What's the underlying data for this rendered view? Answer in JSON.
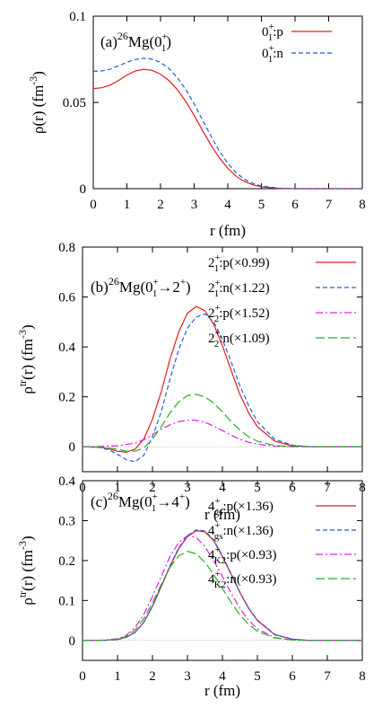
{
  "chart_data": [
    {
      "type": "line",
      "title_parts": {
        "prefix": "(a)",
        "mass": "26",
        "element": "Mg(0",
        "sup": "+",
        "sub": "1",
        "close": ")"
      },
      "xlabel": "r (fm)",
      "ylabel_main": "ρ(r) (fm",
      "ylabel_sup": "-3",
      "ylabel_close": ")",
      "xlim": [
        0,
        8
      ],
      "ylim": [
        0,
        0.1
      ],
      "xticks": [
        "0",
        "1",
        "2",
        "3",
        "4",
        "5",
        "6",
        "7",
        "8"
      ],
      "xtick_values": [
        0,
        1,
        2,
        3,
        4,
        5,
        6,
        7,
        8
      ],
      "yticks": [
        "0",
        "0.05",
        "0.1"
      ],
      "ytick_values": [
        0,
        0.05,
        0.1
      ],
      "zero_line": false,
      "legend_position": "top-right",
      "series": [
        {
          "label_base": "0",
          "label_sup": "+",
          "label_sub": "1",
          "label_rest": ":p",
          "color": "#e41a1c",
          "dash": "",
          "x": [
            0,
            0.25,
            0.5,
            0.75,
            1.0,
            1.25,
            1.5,
            1.75,
            2.0,
            2.25,
            2.5,
            2.75,
            3.0,
            3.25,
            3.5,
            3.75,
            4.0,
            4.25,
            4.5,
            4.75,
            5.0,
            5.5,
            6.0,
            6.5,
            7.0,
            7.5,
            8.0
          ],
          "y": [
            0.058,
            0.0585,
            0.06,
            0.0627,
            0.0659,
            0.0683,
            0.0692,
            0.0686,
            0.0664,
            0.0627,
            0.0574,
            0.0506,
            0.0425,
            0.0337,
            0.0252,
            0.0178,
            0.0118,
            0.0072,
            0.0041,
            0.0022,
            0.0011,
            0.0002,
            0.0,
            0.0,
            0.0,
            0.0,
            0.0
          ]
        },
        {
          "label_base": "0",
          "label_sup": "+",
          "label_sub": "1",
          "label_rest": ":n",
          "color": "#1f5fd6",
          "dash": "5,3",
          "x": [
            0,
            0.25,
            0.5,
            0.75,
            1.0,
            1.25,
            1.5,
            1.75,
            2.0,
            2.25,
            2.5,
            2.75,
            3.0,
            3.25,
            3.5,
            3.75,
            4.0,
            4.25,
            4.5,
            4.75,
            5.0,
            5.5,
            6.0,
            6.5,
            7.0,
            7.5,
            8.0
          ],
          "y": [
            0.068,
            0.0683,
            0.0693,
            0.0712,
            0.0733,
            0.0749,
            0.0756,
            0.0751,
            0.0732,
            0.0697,
            0.0644,
            0.0575,
            0.0491,
            0.0398,
            0.0304,
            0.0218,
            0.0147,
            0.0092,
            0.0054,
            0.003,
            0.0015,
            0.0003,
            0.0,
            0.0,
            0.0,
            0.0,
            0.0
          ]
        }
      ]
    },
    {
      "type": "line",
      "title_parts": {
        "prefix": "(b)",
        "mass": "26",
        "element": "Mg(0",
        "sup": "+",
        "sub": "1",
        "close": "→2",
        "close_sup": "+",
        "end": ")"
      },
      "xlabel": "r (fm)",
      "ylabel_main": "ρ",
      "ylabel_tr": "tr",
      "ylabel_rest": "(r) (fm",
      "ylabel_sup": "-3",
      "ylabel_close": ")",
      "xlim": [
        0,
        8
      ],
      "ylim": [
        -0.1,
        0.8
      ],
      "xticks": [
        "0",
        "1",
        "2",
        "3",
        "4",
        "5",
        "6",
        "7",
        "8"
      ],
      "xtick_values": [
        0,
        1,
        2,
        3,
        4,
        5,
        6,
        7,
        8
      ],
      "yticks": [
        "0",
        "0.2",
        "0.4",
        "0.6",
        "0.8"
      ],
      "ytick_values": [
        0,
        0.2,
        0.4,
        0.6,
        0.8
      ],
      "zero_line": true,
      "legend_position": "top-right",
      "series": [
        {
          "label_base": "2",
          "label_sup": "+",
          "label_sub": "1",
          "label_rest": ":p(×0.99)",
          "color": "#e41a1c",
          "dash": "",
          "x": [
            0,
            0.5,
            0.75,
            1.0,
            1.25,
            1.5,
            1.75,
            2.0,
            2.25,
            2.5,
            2.75,
            3.0,
            3.25,
            3.5,
            3.75,
            4.0,
            4.25,
            4.5,
            4.75,
            5.0,
            5.5,
            6.0,
            6.5,
            7.0,
            7.5,
            8.0
          ],
          "y": [
            0,
            -0.002,
            -0.008,
            -0.018,
            -0.022,
            -0.01,
            0.03,
            0.11,
            0.22,
            0.35,
            0.46,
            0.535,
            0.562,
            0.545,
            0.49,
            0.405,
            0.305,
            0.21,
            0.135,
            0.08,
            0.022,
            0.004,
            0.0,
            0.0,
            0.0,
            0.0
          ]
        },
        {
          "label_base": "2",
          "label_sup": "+",
          "label_sub": "1",
          "label_rest": ":n(×1.22)",
          "color": "#1f5fd6",
          "dash": "5,3",
          "x": [
            0,
            0.5,
            0.75,
            1.0,
            1.25,
            1.5,
            1.75,
            2.0,
            2.25,
            2.5,
            2.75,
            3.0,
            3.25,
            3.5,
            3.75,
            4.0,
            4.25,
            4.5,
            4.75,
            5.0,
            5.5,
            6.0,
            6.5,
            7.0,
            7.5,
            8.0
          ],
          "y": [
            0,
            -0.003,
            -0.012,
            -0.03,
            -0.052,
            -0.06,
            -0.035,
            0.04,
            0.14,
            0.27,
            0.39,
            0.475,
            0.52,
            0.532,
            0.5,
            0.43,
            0.34,
            0.245,
            0.165,
            0.1,
            0.03,
            0.006,
            0.0,
            0.0,
            0.0,
            0.0
          ]
        },
        {
          "label_base": "2",
          "label_sup": "+",
          "label_sub": "2",
          "label_rest": ":p(×1.52)",
          "color": "#e020e0",
          "dash": "8,3,2,3",
          "x": [
            0,
            0.5,
            1.0,
            1.5,
            1.75,
            2.0,
            2.25,
            2.5,
            2.75,
            3.0,
            3.25,
            3.5,
            3.75,
            4.0,
            4.25,
            4.5,
            4.75,
            5.0,
            5.5,
            6.0,
            6.5,
            7.0,
            7.5,
            8.0
          ],
          "y": [
            0,
            0.001,
            0.004,
            0.014,
            0.028,
            0.048,
            0.07,
            0.088,
            0.1,
            0.107,
            0.106,
            0.098,
            0.083,
            0.065,
            0.046,
            0.03,
            0.018,
            0.01,
            0.002,
            0.0,
            0.0,
            0.0,
            0.0,
            0.0
          ]
        },
        {
          "label_base": "2",
          "label_sup": "+",
          "label_sub": "2",
          "label_rest": ":n(×1.09)",
          "color": "#22b022",
          "dash": "10,4",
          "x": [
            0,
            0.5,
            1.0,
            1.25,
            1.5,
            1.75,
            2.0,
            2.25,
            2.5,
            2.75,
            3.0,
            3.25,
            3.5,
            3.75,
            4.0,
            4.25,
            4.5,
            4.75,
            5.0,
            5.5,
            6.0,
            6.5,
            7.0,
            7.5,
            8.0
          ],
          "y": [
            0,
            -0.001,
            -0.01,
            -0.018,
            -0.018,
            -0.005,
            0.03,
            0.08,
            0.135,
            0.18,
            0.205,
            0.21,
            0.2,
            0.175,
            0.14,
            0.1,
            0.067,
            0.04,
            0.022,
            0.005,
            0.0,
            0.0,
            0.0,
            0.0,
            0.0
          ]
        }
      ]
    },
    {
      "type": "line",
      "title_parts": {
        "prefix": "(c)",
        "mass": "26",
        "element": "Mg(0",
        "sup": "+",
        "sub": "1",
        "close": "→4",
        "close_sup": "+",
        "end": ")"
      },
      "xlabel": "r (fm)",
      "ylabel_main": "ρ",
      "ylabel_tr": "tr",
      "ylabel_rest": "(r) (fm",
      "ylabel_sup": "-3",
      "ylabel_close": ")",
      "xlim": [
        0,
        8
      ],
      "ylim": [
        -0.05,
        0.4
      ],
      "xticks": [
        "0",
        "1",
        "2",
        "3",
        "4",
        "5",
        "6",
        "7",
        "8"
      ],
      "xtick_values": [
        0,
        1,
        2,
        3,
        4,
        5,
        6,
        7,
        8
      ],
      "yticks": [
        "0",
        "0.1",
        "0.2",
        "0.3",
        "0.4"
      ],
      "ytick_values": [
        0,
        0.1,
        0.2,
        0.3,
        0.4
      ],
      "zero_line": true,
      "legend_position": "top-right",
      "series": [
        {
          "label_base": "4",
          "label_sup": "+",
          "label_sub": "gs",
          "label_rest": ":p(×1.36)",
          "color": "#e41a1c",
          "dash": "",
          "x": [
            0,
            0.5,
            1.0,
            1.25,
            1.5,
            1.75,
            2.0,
            2.25,
            2.5,
            2.75,
            3.0,
            3.25,
            3.5,
            3.75,
            4.0,
            4.25,
            4.5,
            4.75,
            5.0,
            5.5,
            6.0,
            6.5,
            7.0,
            7.5,
            8.0
          ],
          "y": [
            0,
            0.0,
            0.002,
            0.008,
            0.02,
            0.045,
            0.085,
            0.135,
            0.185,
            0.23,
            0.26,
            0.275,
            0.272,
            0.25,
            0.21,
            0.165,
            0.12,
            0.08,
            0.05,
            0.014,
            0.003,
            0.0,
            0.0,
            0.0,
            0.0
          ]
        },
        {
          "label_base": "4",
          "label_sup": "+",
          "label_sub": "gs",
          "label_rest": ":n(×1.36)",
          "color": "#1f5fd6",
          "dash": "5,3",
          "x": [
            0,
            0.5,
            1.0,
            1.25,
            1.5,
            1.75,
            2.0,
            2.25,
            2.5,
            2.75,
            3.0,
            3.25,
            3.5,
            3.75,
            4.0,
            4.25,
            4.5,
            4.75,
            5.0,
            5.5,
            6.0,
            6.5,
            7.0,
            7.5,
            8.0
          ],
          "y": [
            0,
            0.0,
            0.002,
            0.008,
            0.02,
            0.045,
            0.086,
            0.136,
            0.187,
            0.232,
            0.262,
            0.277,
            0.274,
            0.252,
            0.212,
            0.167,
            0.121,
            0.081,
            0.051,
            0.015,
            0.003,
            0.0,
            0.0,
            0.0,
            0.0
          ]
        },
        {
          "label_base": "4",
          "label_sup": "+",
          "label_sub": "K2",
          "label_rest": ":p(×0.93)",
          "color": "#e020e0",
          "dash": "8,3,2,3",
          "x": [
            0,
            0.5,
            1.0,
            1.25,
            1.5,
            1.75,
            2.0,
            2.25,
            2.5,
            2.75,
            3.0,
            3.25,
            3.5,
            3.75,
            4.0,
            4.25,
            4.5,
            4.75,
            5.0,
            5.5,
            6.0,
            6.5,
            7.0,
            7.5,
            8.0
          ],
          "y": [
            0,
            0.0,
            0.004,
            0.013,
            0.032,
            0.065,
            0.11,
            0.16,
            0.21,
            0.245,
            0.262,
            0.258,
            0.235,
            0.2,
            0.16,
            0.118,
            0.08,
            0.05,
            0.029,
            0.007,
            0.001,
            0.0,
            0.0,
            0.0,
            0.0
          ]
        },
        {
          "label_base": "4",
          "label_sup": "+",
          "label_sub": "K2",
          "label_rest": ":n(×0.93)",
          "color": "#22b022",
          "dash": "10,4",
          "x": [
            0,
            0.5,
            1.0,
            1.25,
            1.5,
            1.75,
            2.0,
            2.25,
            2.5,
            2.75,
            3.0,
            3.25,
            3.5,
            3.75,
            4.0,
            4.25,
            4.5,
            4.75,
            5.0,
            5.5,
            6.0,
            6.5,
            7.0,
            7.5,
            8.0
          ],
          "y": [
            0,
            0.0,
            0.003,
            0.01,
            0.026,
            0.054,
            0.094,
            0.14,
            0.183,
            0.212,
            0.223,
            0.217,
            0.196,
            0.165,
            0.13,
            0.095,
            0.064,
            0.04,
            0.023,
            0.006,
            0.001,
            0.0,
            0.0,
            0.0,
            0.0
          ]
        }
      ]
    }
  ]
}
